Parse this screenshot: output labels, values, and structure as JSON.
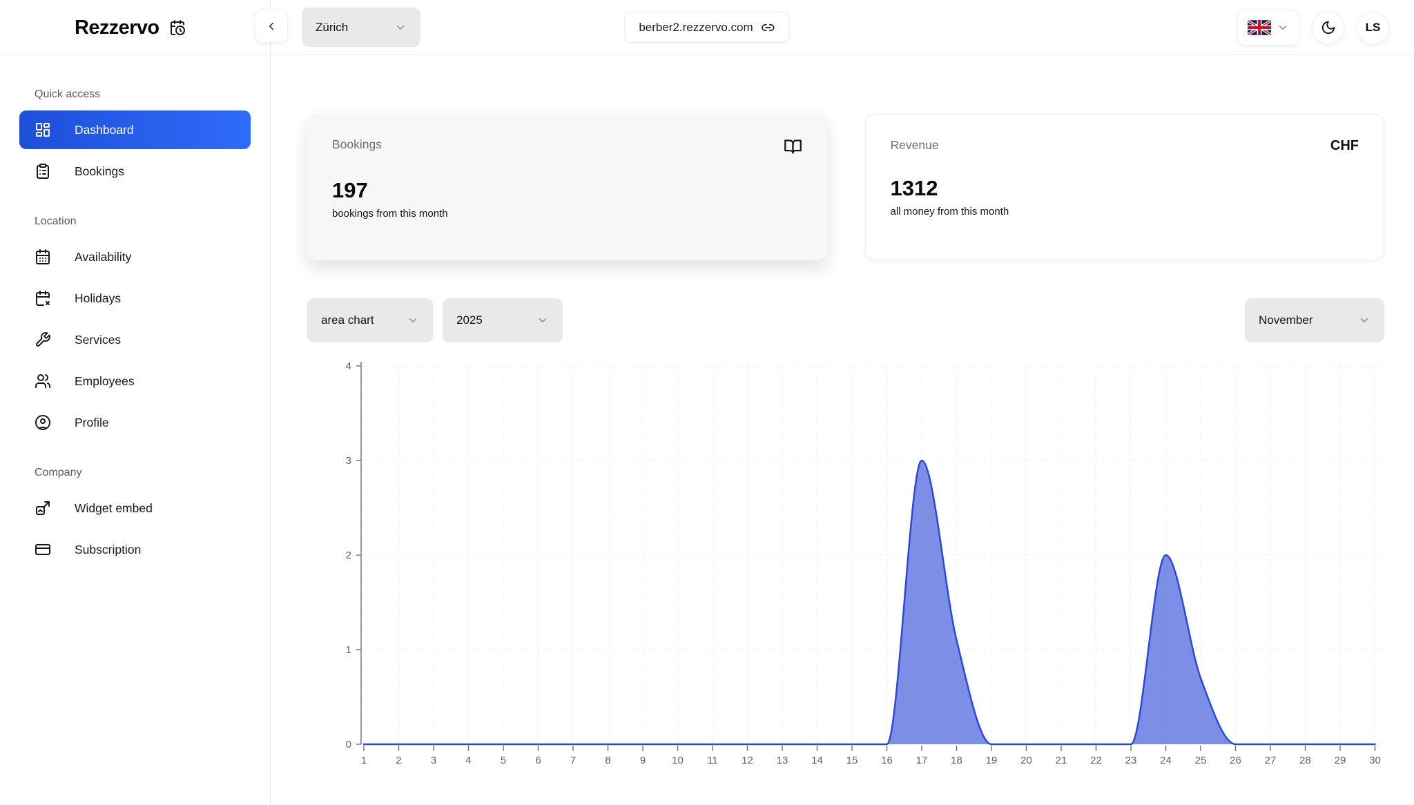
{
  "header": {
    "logo": "Rezzervo",
    "location_selector": "Zürich",
    "domain": "berber2.rezzervo.com",
    "language_flag": "uk-flag-icon",
    "avatar_initials": "LS"
  },
  "sidebar": {
    "sections": [
      {
        "heading": "Quick access",
        "items": [
          {
            "label": "Dashboard",
            "icon": "dashboard-icon",
            "active": true
          },
          {
            "label": "Bookings",
            "icon": "clipboard-list-icon",
            "active": false
          }
        ]
      },
      {
        "heading": "Location",
        "items": [
          {
            "label": "Availability",
            "icon": "calendar-days-icon",
            "active": false
          },
          {
            "label": "Holidays",
            "icon": "calendar-x-icon",
            "active": false
          },
          {
            "label": "Services",
            "icon": "wrench-icon",
            "active": false
          },
          {
            "label": "Employees",
            "icon": "users-icon",
            "active": false
          },
          {
            "label": "Profile",
            "icon": "circle-user-icon",
            "active": false
          }
        ]
      },
      {
        "heading": "Company",
        "items": [
          {
            "label": "Widget embed",
            "icon": "widget-embed-icon",
            "active": false
          },
          {
            "label": "Subscription",
            "icon": "credit-card-icon",
            "active": false
          }
        ]
      }
    ]
  },
  "stats": {
    "bookings": {
      "title": "Bookings",
      "value": "197",
      "caption": "bookings from this month",
      "icon": "book-open-icon"
    },
    "revenue": {
      "title": "Revenue",
      "currency": "CHF",
      "value": "1312",
      "caption": "all money from this month"
    }
  },
  "filters": {
    "chart_type": "area chart",
    "year": "2025",
    "month": "November"
  },
  "chart_data": {
    "type": "area",
    "x": [
      1,
      2,
      3,
      4,
      5,
      6,
      7,
      8,
      9,
      10,
      11,
      12,
      13,
      14,
      15,
      16,
      17,
      18,
      19,
      20,
      21,
      22,
      23,
      24,
      25,
      26,
      27,
      28,
      29,
      30
    ],
    "values": [
      0,
      0,
      0,
      0,
      0,
      0,
      0,
      0,
      0,
      0,
      0,
      0,
      0,
      0,
      0,
      0,
      3,
      1.1,
      0,
      0,
      0,
      0,
      0,
      2,
      0.7,
      0,
      0,
      0,
      0,
      0
    ],
    "ylim": [
      0,
      4
    ],
    "yticks": [
      0,
      1,
      2,
      3,
      4
    ],
    "grid": "dashed",
    "smoothing": "monotone",
    "stroke": "#2b49d6",
    "fill": "#4f66de",
    "fill_opacity": 0.74
  },
  "colors": {
    "active_nav_gradient_start": "#1e4fd8",
    "active_nav_gradient_end": "#2f6bfa",
    "chart_stroke": "#2b49d6",
    "chart_fill": "#4f66de"
  }
}
